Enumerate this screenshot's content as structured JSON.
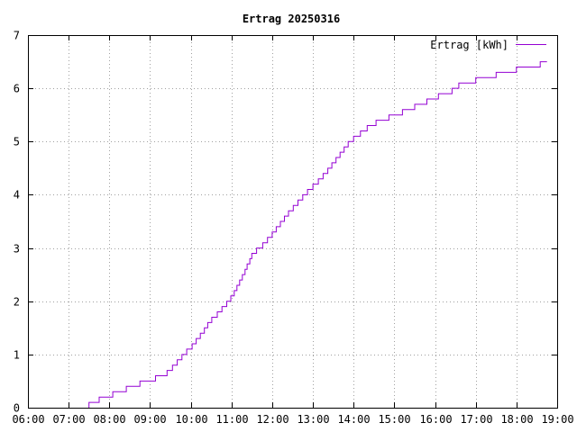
{
  "chart_data": {
    "type": "line",
    "title": "Ertrag 20250316",
    "xlabel": "",
    "ylabel": "",
    "xlim": [
      "06:00",
      "19:00"
    ],
    "ylim": [
      0,
      7
    ],
    "x_ticks": [
      "06:00",
      "07:00",
      "08:00",
      "09:00",
      "10:00",
      "11:00",
      "12:00",
      "13:00",
      "14:00",
      "15:00",
      "16:00",
      "17:00",
      "18:00",
      "19:00"
    ],
    "y_ticks": [
      "0",
      "1",
      "2",
      "3",
      "4",
      "5",
      "6",
      "7"
    ],
    "grid": true,
    "legend_position": "top-right",
    "line_style": "step",
    "series": [
      {
        "name": "Ertrag [kWh]",
        "color": "#9400d3",
        "points": [
          [
            "07:30",
            0.0
          ],
          [
            "07:30",
            0.1
          ],
          [
            "07:45",
            0.2
          ],
          [
            "08:05",
            0.3
          ],
          [
            "08:25",
            0.4
          ],
          [
            "08:45",
            0.5
          ],
          [
            "09:08",
            0.6
          ],
          [
            "09:25",
            0.7
          ],
          [
            "09:33",
            0.8
          ],
          [
            "09:40",
            0.9
          ],
          [
            "09:47",
            1.0
          ],
          [
            "09:54",
            1.1
          ],
          [
            "10:02",
            1.2
          ],
          [
            "10:08",
            1.3
          ],
          [
            "10:14",
            1.4
          ],
          [
            "10:20",
            1.5
          ],
          [
            "10:25",
            1.6
          ],
          [
            "10:31",
            1.7
          ],
          [
            "10:39",
            1.8
          ],
          [
            "10:46",
            1.9
          ],
          [
            "10:53",
            2.0
          ],
          [
            "10:59",
            2.1
          ],
          [
            "11:04",
            2.2
          ],
          [
            "11:08",
            2.3
          ],
          [
            "11:12",
            2.4
          ],
          [
            "11:16",
            2.5
          ],
          [
            "11:20",
            2.6
          ],
          [
            "11:23",
            2.7
          ],
          [
            "11:27",
            2.8
          ],
          [
            "11:30",
            2.9
          ],
          [
            "11:37",
            3.0
          ],
          [
            "11:46",
            3.1
          ],
          [
            "11:53",
            3.2
          ],
          [
            "12:00",
            3.3
          ],
          [
            "12:06",
            3.4
          ],
          [
            "12:12",
            3.5
          ],
          [
            "12:18",
            3.6
          ],
          [
            "12:24",
            3.7
          ],
          [
            "12:31",
            3.8
          ],
          [
            "12:38",
            3.9
          ],
          [
            "12:45",
            4.0
          ],
          [
            "12:52",
            4.1
          ],
          [
            "13:00",
            4.2
          ],
          [
            "13:08",
            4.3
          ],
          [
            "13:15",
            4.4
          ],
          [
            "13:22",
            4.5
          ],
          [
            "13:28",
            4.6
          ],
          [
            "13:34",
            4.7
          ],
          [
            "13:40",
            4.8
          ],
          [
            "13:46",
            4.9
          ],
          [
            "13:52",
            5.0
          ],
          [
            "14:00",
            5.1
          ],
          [
            "14:10",
            5.2
          ],
          [
            "14:20",
            5.3
          ],
          [
            "14:33",
            5.4
          ],
          [
            "14:52",
            5.5
          ],
          [
            "15:12",
            5.6
          ],
          [
            "15:30",
            5.7
          ],
          [
            "15:48",
            5.8
          ],
          [
            "16:05",
            5.9
          ],
          [
            "16:25",
            6.0
          ],
          [
            "16:35",
            6.1
          ],
          [
            "17:00",
            6.2
          ],
          [
            "17:30",
            6.3
          ],
          [
            "18:00",
            6.4
          ],
          [
            "18:35",
            6.5
          ],
          [
            "18:45",
            6.5
          ]
        ]
      }
    ]
  }
}
